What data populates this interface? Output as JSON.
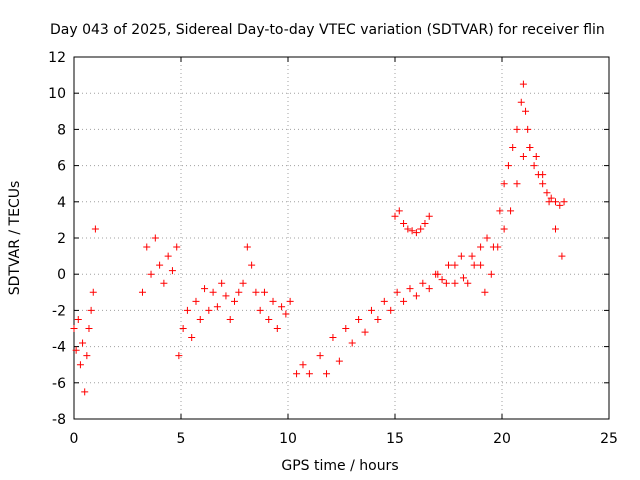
{
  "chart_data": {
    "type": "scatter",
    "title": "Day 043 of 2025, Sidereal Day-to-day VTEC variation (SDTVAR) for receiver flin",
    "xlabel": "GPS time / hours",
    "ylabel": "SDTVAR / TECUs",
    "xlim": [
      0,
      25
    ],
    "ylim": [
      -8,
      12
    ],
    "xticks": [
      "0",
      "5",
      "10",
      "15",
      "20",
      "25"
    ],
    "yticks": [
      "-8",
      "-6",
      "-4",
      "-2",
      "0",
      "2",
      "4",
      "6",
      "8",
      "10",
      "12"
    ],
    "grid": true,
    "marker": "+",
    "color": "#ff0000",
    "series": [
      {
        "name": "SDTVAR",
        "x": [
          0.0,
          0.1,
          0.2,
          0.3,
          0.4,
          0.5,
          0.6,
          0.7,
          0.8,
          0.9,
          1.0,
          3.2,
          3.4,
          3.6,
          3.8,
          4.0,
          4.2,
          4.4,
          4.6,
          4.8,
          4.9,
          5.1,
          5.3,
          5.5,
          5.7,
          5.9,
          6.1,
          6.3,
          6.5,
          6.7,
          6.9,
          7.1,
          7.3,
          7.5,
          7.7,
          7.9,
          8.1,
          8.3,
          8.5,
          8.7,
          8.9,
          9.1,
          9.3,
          9.5,
          9.7,
          9.9,
          10.1,
          10.4,
          10.7,
          11.0,
          11.5,
          11.8,
          12.1,
          12.4,
          12.7,
          13.0,
          13.3,
          13.6,
          13.9,
          14.2,
          14.5,
          14.8,
          15.1,
          15.4,
          15.7,
          16.0,
          16.3,
          16.6,
          16.9,
          17.2,
          17.5,
          17.8,
          18.1,
          18.4,
          18.7,
          19.0,
          15.0,
          15.2,
          15.4,
          15.6,
          15.8,
          16.0,
          16.2,
          16.4,
          16.6,
          17.0,
          17.4,
          17.8,
          18.2,
          18.6,
          19.0,
          19.3,
          19.6,
          19.9,
          20.1,
          20.3,
          20.5,
          20.7,
          20.9,
          21.0,
          21.1,
          21.2,
          21.3,
          21.5,
          21.7,
          21.9,
          22.1,
          22.3,
          22.5,
          22.7,
          22.9,
          19.2,
          19.5,
          19.8,
          20.1,
          20.4,
          20.7,
          21.0,
          21.3,
          21.6,
          21.9,
          22.2,
          22.5,
          22.8
        ],
        "y": [
          -3.0,
          -4.2,
          -2.5,
          -5.0,
          -3.8,
          -6.5,
          -4.5,
          -3.0,
          -2.0,
          -1.0,
          2.5,
          -1.0,
          1.5,
          0.0,
          2.0,
          0.5,
          -0.5,
          1.0,
          0.2,
          1.5,
          -4.5,
          -3.0,
          -2.0,
          -3.5,
          -1.5,
          -2.5,
          -0.8,
          -2.0,
          -1.0,
          -1.8,
          -0.5,
          -1.2,
          -2.5,
          -1.5,
          -1.0,
          -0.5,
          1.5,
          0.5,
          -1.0,
          -2.0,
          -1.0,
          -2.5,
          -1.5,
          -3.0,
          -1.8,
          -2.2,
          -1.5,
          -5.5,
          -5.0,
          -5.5,
          -4.5,
          -5.5,
          -3.5,
          -4.8,
          -3.0,
          -3.8,
          -2.5,
          -3.2,
          -2.0,
          -2.5,
          -1.5,
          -2.0,
          -1.0,
          -1.5,
          -0.8,
          -1.2,
          -0.5,
          -0.8,
          0.0,
          -0.3,
          0.5,
          -0.5,
          1.0,
          -0.5,
          0.5,
          1.5,
          3.2,
          3.5,
          2.8,
          2.5,
          2.4,
          2.3,
          2.5,
          2.8,
          3.2,
          0.0,
          -0.5,
          0.5,
          -0.2,
          1.0,
          0.5,
          2.0,
          1.5,
          3.5,
          5.0,
          6.0,
          7.0,
          8.0,
          9.5,
          10.5,
          9.0,
          8.0,
          7.0,
          6.0,
          5.5,
          5.0,
          4.5,
          4.2,
          4.0,
          3.8,
          4.0,
          -1.0,
          0.0,
          1.5,
          2.5,
          3.5,
          5.0,
          6.5,
          7.0,
          6.5,
          5.5,
          4.0,
          2.5,
          1.0
        ]
      }
    ]
  }
}
